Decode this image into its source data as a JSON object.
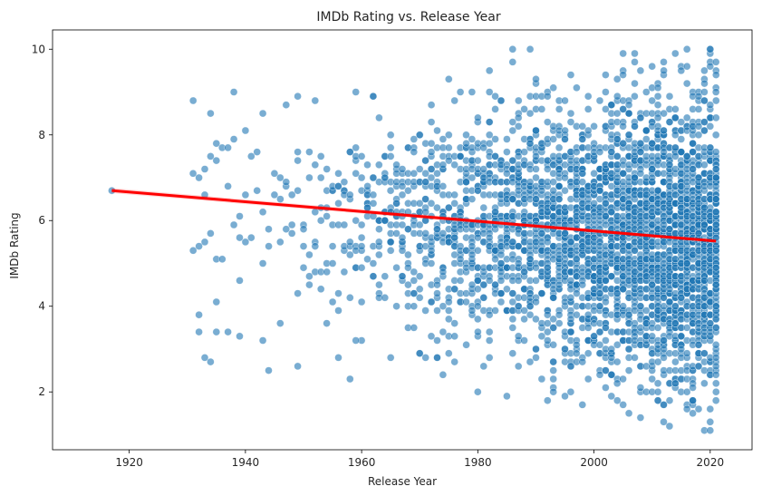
{
  "chart_data": {
    "type": "scatter",
    "title": "IMDb Rating vs. Release Year",
    "xlabel": "Release Year",
    "ylabel": "IMDb Rating",
    "xlim": [
      1906.8,
      2027.2
    ],
    "ylim": [
      0.65,
      10.45
    ],
    "xticks": [
      "1920",
      "1940",
      "1960",
      "1980",
      "2000",
      "2020"
    ],
    "yticks": [
      "2",
      "4",
      "6",
      "8",
      "10"
    ],
    "grid": false,
    "colors": {
      "points": "#1f77b4",
      "regression": "#ff0000",
      "confidence_band": "#ff0000"
    },
    "point_alpha": 0.6,
    "regression_line": {
      "x": [
        1917,
        2021
      ],
      "y": [
        6.7,
        5.52
      ]
    },
    "year_range": [
      1917,
      2021
    ],
    "rating_range": [
      1.1,
      10.0
    ],
    "sample_points": [
      {
        "x": 1917,
        "y": 6.7
      },
      {
        "x": 1931,
        "y": 5.3
      },
      {
        "x": 1932,
        "y": 3.8
      },
      {
        "x": 1932,
        "y": 3.4
      },
      {
        "x": 1933,
        "y": 7.2
      },
      {
        "x": 1933,
        "y": 2.8
      },
      {
        "x": 1934,
        "y": 8.5
      },
      {
        "x": 1934,
        "y": 2.7
      },
      {
        "x": 1935,
        "y": 4.1
      },
      {
        "x": 1935,
        "y": 3.4
      },
      {
        "x": 1935,
        "y": 7.4
      },
      {
        "x": 1937,
        "y": 3.4
      },
      {
        "x": 1938,
        "y": 9.0
      },
      {
        "x": 1939,
        "y": 4.6
      },
      {
        "x": 1939,
        "y": 3.3
      },
      {
        "x": 1940,
        "y": 8.1
      },
      {
        "x": 1943,
        "y": 8.5
      },
      {
        "x": 1943,
        "y": 3.2
      },
      {
        "x": 1944,
        "y": 2.5
      },
      {
        "x": 1946,
        "y": 3.6
      },
      {
        "x": 1947,
        "y": 8.7
      },
      {
        "x": 1949,
        "y": 8.9
      },
      {
        "x": 1949,
        "y": 2.6
      },
      {
        "x": 1952,
        "y": 8.8
      },
      {
        "x": 1954,
        "y": 3.6
      },
      {
        "x": 1956,
        "y": 2.8
      },
      {
        "x": 1958,
        "y": 2.3
      },
      {
        "x": 1959,
        "y": 9.0
      },
      {
        "x": 1959,
        "y": 3.2
      },
      {
        "x": 1963,
        "y": 8.4
      },
      {
        "x": 1965,
        "y": 2.8
      },
      {
        "x": 1972,
        "y": 8.7
      },
      {
        "x": 1973,
        "y": 2.8
      },
      {
        "x": 1979,
        "y": 9.0
      },
      {
        "x": 1981,
        "y": 2.6
      },
      {
        "x": 1987,
        "y": 2.6
      },
      {
        "x": 1992,
        "y": 8.9
      },
      {
        "x": 1993,
        "y": 2.0
      },
      {
        "x": 1997,
        "y": 9.1
      },
      {
        "x": 1998,
        "y": 1.7
      },
      {
        "x": 2003,
        "y": 1.9
      },
      {
        "x": 2007,
        "y": 9.2
      },
      {
        "x": 2008,
        "y": 1.4
      },
      {
        "x": 2011,
        "y": 9.1
      },
      {
        "x": 2012,
        "y": 1.7
      },
      {
        "x": 2016,
        "y": 9.2
      },
      {
        "x": 2018,
        "y": 1.6
      },
      {
        "x": 2020,
        "y": 10.0
      },
      {
        "x": 2020,
        "y": 1.1
      },
      {
        "x": 2021,
        "y": 9.7
      },
      {
        "x": 2021,
        "y": 1.8
      }
    ]
  }
}
